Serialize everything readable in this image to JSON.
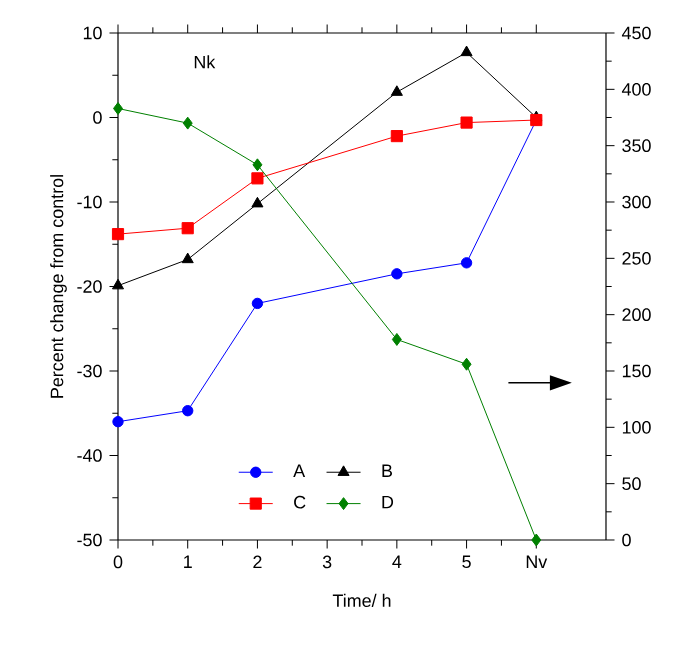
{
  "chart_data": {
    "type": "line",
    "annotations": [
      "Nk"
    ],
    "xlabel": "Time/ h",
    "ylabel": "Percent change from control",
    "x": [
      0,
      1,
      2,
      4,
      5,
      6
    ],
    "xlim": [
      0,
      7
    ],
    "xticks": [
      0,
      1,
      2,
      3,
      4,
      5,
      {
        "value": 6,
        "label": "Nv"
      }
    ],
    "ylim": [
      -50,
      10
    ],
    "yticks": [
      -50,
      -40,
      -30,
      -20,
      -10,
      0,
      10
    ],
    "y2lim": [
      0,
      450
    ],
    "y2ticks": [
      0,
      50,
      100,
      150,
      200,
      250,
      300,
      350,
      400,
      450
    ],
    "legend": "bottom",
    "line_style": "solid",
    "series": [
      {
        "name": "A",
        "color": "#0000ff",
        "marker": "circle",
        "values": [
          -36.0,
          -34.7,
          -22.0,
          -18.5,
          -17.2,
          -0.3
        ]
      },
      {
        "name": "B",
        "color": "#000000",
        "marker": "triangle",
        "values": [
          -19.9,
          -16.8,
          -10.2,
          3.0,
          7.7,
          0
        ]
      },
      {
        "name": "C",
        "color": "#ff0000",
        "marker": "square",
        "values": [
          -13.8,
          -13.1,
          -7.2,
          -2.2,
          -0.6,
          -0.3
        ]
      },
      {
        "name": "D",
        "color": "#008000",
        "marker": "diamond",
        "axis": "y2",
        "values": [
          383,
          370,
          333,
          178,
          156,
          0
        ]
      }
    ]
  }
}
